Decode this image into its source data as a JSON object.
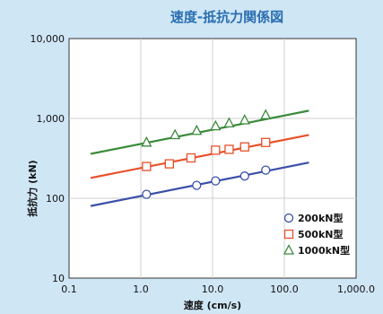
{
  "chart_data": {
    "type": "scatter",
    "title": "速度-抵抗力関係図",
    "xlabel": "速度 (cm/s)",
    "ylabel": "抵抗力 (kN)",
    "xscale": "log",
    "yscale": "log",
    "xlim": [
      0.1,
      1000
    ],
    "ylim": [
      10,
      10000
    ],
    "x_tick_labels": [
      "0.1",
      "1.0",
      "10.0",
      "100.0",
      "1,000.0"
    ],
    "y_tick_labels": [
      "10",
      "100",
      "1,000",
      "10,000"
    ],
    "grid": true,
    "legend_position": "lower-right",
    "series": [
      {
        "name": "200kN型",
        "marker": "circle",
        "color": "#3a4fa8",
        "points": [
          [
            1.2,
            112
          ],
          [
            6,
            145
          ],
          [
            11,
            165
          ],
          [
            28,
            190
          ],
          [
            55,
            225
          ]
        ],
        "fit_line": [
          [
            0.2,
            80
          ],
          [
            220,
            280
          ]
        ]
      },
      {
        "name": "500kN型",
        "marker": "square",
        "color": "#e8502a",
        "points": [
          [
            1.2,
            250
          ],
          [
            2.5,
            270
          ],
          [
            5,
            320
          ],
          [
            11,
            400
          ],
          [
            17,
            410
          ],
          [
            28,
            440
          ],
          [
            55,
            500
          ]
        ],
        "fit_line": [
          [
            0.2,
            180
          ],
          [
            220,
            620
          ]
        ]
      },
      {
        "name": "1000kN型",
        "marker": "triangle",
        "color": "#3a8a3a",
        "points": [
          [
            1.2,
            500
          ],
          [
            3,
            620
          ],
          [
            6,
            700
          ],
          [
            11,
            800
          ],
          [
            17,
            870
          ],
          [
            28,
            950
          ],
          [
            55,
            1100
          ]
        ],
        "fit_line": [
          [
            0.2,
            360
          ],
          [
            220,
            1250
          ]
        ]
      }
    ]
  }
}
